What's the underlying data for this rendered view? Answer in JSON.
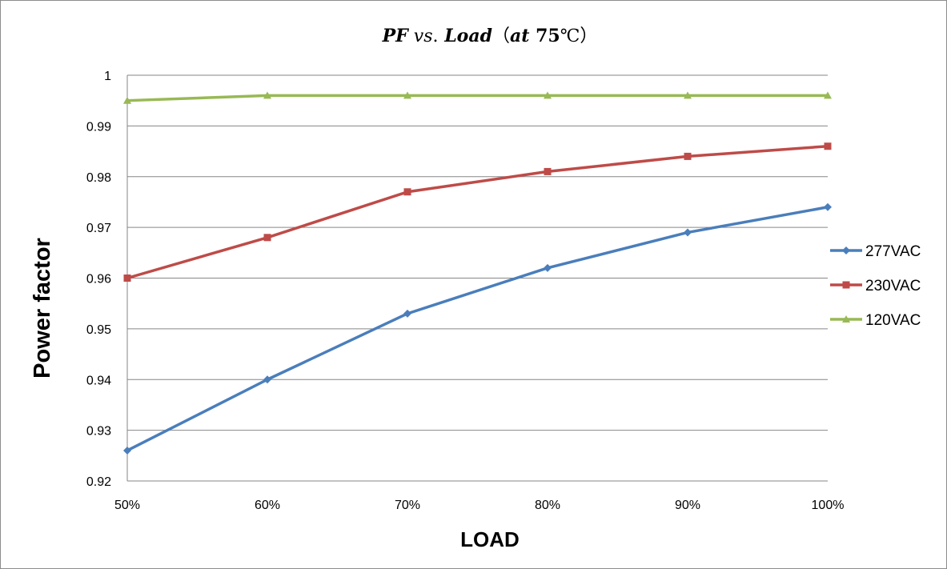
{
  "chart_data": {
    "type": "line",
    "title": "PF vs. Load ( at 75℃)",
    "title_parts": {
      "pf": "PF",
      "vs": " vs",
      "dot": ".",
      "load": " Load",
      "open": "（",
      "at": "at ",
      "temp": "75",
      "unit": "℃",
      "close": "）"
    },
    "xlabel": "LOAD",
    "ylabel": "Power factor",
    "categories": [
      "50%",
      "60%",
      "70%",
      "80%",
      "90%",
      "100%"
    ],
    "ylim": [
      0.92,
      1.0
    ],
    "yticks": [
      0.92,
      0.93,
      0.94,
      0.95,
      0.96,
      0.97,
      0.98,
      0.99,
      1
    ],
    "ytick_labels": [
      "0.92",
      "0.93",
      "0.94",
      "0.95",
      "0.96",
      "0.97",
      "0.98",
      "0.99",
      "1"
    ],
    "grid": true,
    "legend_position": "right",
    "series": [
      {
        "name": "277VAC",
        "color": "#4a7ebb",
        "marker": "diamond",
        "values": [
          0.926,
          0.94,
          0.953,
          0.962,
          0.969,
          0.974
        ]
      },
      {
        "name": "230VAC",
        "color": "#be4b48",
        "marker": "square",
        "values": [
          0.96,
          0.968,
          0.977,
          0.981,
          0.984,
          0.986
        ]
      },
      {
        "name": "120VAC",
        "color": "#98b954",
        "marker": "triangle",
        "values": [
          0.995,
          0.996,
          0.996,
          0.996,
          0.996,
          0.996
        ]
      }
    ]
  }
}
